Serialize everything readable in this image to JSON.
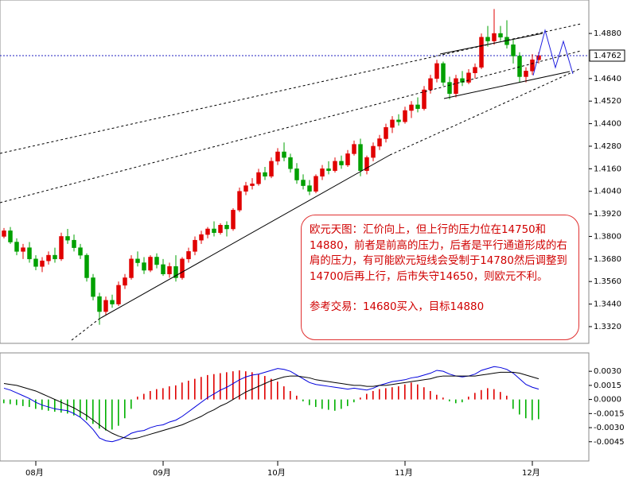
{
  "chart_data": [
    {
      "type": "candlestick",
      "up_color": "#e00000",
      "down_color": "#00a000",
      "ylim": [
        1.3231,
        1.5058
      ],
      "yticks": [
        {
          "value": 1.488,
          "label": "1.4880"
        },
        {
          "value": 1.464,
          "label": "1.4640"
        },
        {
          "value": 1.452,
          "label": "1.4520"
        },
        {
          "value": 1.44,
          "label": "1.4400"
        },
        {
          "value": 1.428,
          "label": "1.4280"
        },
        {
          "value": 1.416,
          "label": "1.4160"
        },
        {
          "value": 1.404,
          "label": "1.4040"
        },
        {
          "value": 1.392,
          "label": "1.3920"
        },
        {
          "value": 1.38,
          "label": "1.3800"
        },
        {
          "value": 1.368,
          "label": "1.3680"
        },
        {
          "value": 1.356,
          "label": "1.3560"
        },
        {
          "value": 1.344,
          "label": "1.3440"
        },
        {
          "value": 1.332,
          "label": "1.3320"
        }
      ],
      "current_price": {
        "value": 1.4762,
        "label": "1.4762"
      },
      "open": [
        1.38,
        1.383,
        1.377,
        1.372,
        1.374,
        1.368,
        1.364,
        1.367,
        1.37,
        1.368,
        1.38,
        1.378,
        1.374,
        1.37,
        1.358,
        1.348,
        1.34,
        1.346,
        1.344,
        1.354,
        1.358,
        1.368,
        1.366,
        1.362,
        1.369,
        1.365,
        1.36,
        1.364,
        1.358,
        1.368,
        1.372,
        1.378,
        1.381,
        1.384,
        1.382,
        1.386,
        1.384,
        1.394,
        1.404,
        1.407,
        1.408,
        1.414,
        1.412,
        1.42,
        1.425,
        1.422,
        1.416,
        1.41,
        1.407,
        1.404,
        1.412,
        1.416,
        1.415,
        1.42,
        1.418,
        1.424,
        1.429,
        1.415,
        1.422,
        1.428,
        1.432,
        1.438,
        1.442,
        1.441,
        1.447,
        1.45,
        1.448,
        1.458,
        1.464,
        1.472,
        1.462,
        1.456,
        1.464,
        1.462,
        1.467,
        1.47,
        1.486,
        1.484,
        1.488,
        1.486,
        1.482,
        1.476,
        1.465,
        1.468,
        1.474
      ],
      "high": [
        1.3845,
        1.385,
        1.379,
        1.376,
        1.377,
        1.37,
        1.369,
        1.372,
        1.374,
        1.382,
        1.384,
        1.381,
        1.376,
        1.371,
        1.36,
        1.35,
        1.348,
        1.349,
        1.356,
        1.36,
        1.37,
        1.372,
        1.369,
        1.37,
        1.371,
        1.368,
        1.366,
        1.37,
        1.369,
        1.374,
        1.38,
        1.383,
        1.385,
        1.388,
        1.387,
        1.388,
        1.395,
        1.406,
        1.409,
        1.411,
        1.416,
        1.417,
        1.422,
        1.427,
        1.43,
        1.424,
        1.419,
        1.413,
        1.41,
        1.413,
        1.418,
        1.42,
        1.422,
        1.423,
        1.426,
        1.431,
        1.432,
        1.423,
        1.43,
        1.434,
        1.44,
        1.444,
        1.445,
        1.449,
        1.452,
        1.454,
        1.46,
        1.466,
        1.474,
        1.473,
        1.465,
        1.466,
        1.468,
        1.469,
        1.472,
        1.488,
        1.492,
        1.501,
        1.492,
        1.495,
        1.485,
        1.478,
        1.47,
        1.477,
        1.478
      ],
      "low": [
        1.379,
        1.376,
        1.37,
        1.368,
        1.366,
        1.362,
        1.361,
        1.365,
        1.366,
        1.367,
        1.376,
        1.372,
        1.368,
        1.356,
        1.346,
        1.333,
        1.338,
        1.342,
        1.343,
        1.352,
        1.357,
        1.364,
        1.36,
        1.361,
        1.363,
        1.359,
        1.358,
        1.356,
        1.357,
        1.366,
        1.37,
        1.376,
        1.379,
        1.38,
        1.381,
        1.38,
        1.383,
        1.393,
        1.402,
        1.405,
        1.407,
        1.41,
        1.411,
        1.418,
        1.42,
        1.414,
        1.408,
        1.405,
        1.402,
        1.403,
        1.41,
        1.413,
        1.414,
        1.416,
        1.417,
        1.423,
        1.412,
        1.413,
        1.42,
        1.426,
        1.43,
        1.435,
        1.439,
        1.44,
        1.443,
        1.446,
        1.447,
        1.456,
        1.462,
        1.46,
        1.453,
        1.454,
        1.46,
        1.461,
        1.464,
        1.469,
        1.481,
        1.482,
        1.484,
        1.48,
        1.472,
        1.462,
        1.462,
        1.466,
        1.472
      ],
      "close": [
        1.383,
        1.377,
        1.372,
        1.374,
        1.368,
        1.364,
        1.367,
        1.37,
        1.368,
        1.38,
        1.378,
        1.374,
        1.37,
        1.358,
        1.348,
        1.34,
        1.346,
        1.344,
        1.354,
        1.358,
        1.368,
        1.366,
        1.362,
        1.369,
        1.365,
        1.36,
        1.364,
        1.358,
        1.368,
        1.372,
        1.378,
        1.381,
        1.384,
        1.382,
        1.386,
        1.384,
        1.394,
        1.404,
        1.407,
        1.408,
        1.414,
        1.412,
        1.42,
        1.425,
        1.422,
        1.416,
        1.41,
        1.407,
        1.404,
        1.412,
        1.416,
        1.415,
        1.42,
        1.418,
        1.424,
        1.429,
        1.415,
        1.422,
        1.428,
        1.432,
        1.438,
        1.442,
        1.441,
        1.447,
        1.45,
        1.448,
        1.458,
        1.464,
        1.472,
        1.462,
        1.456,
        1.464,
        1.462,
        1.467,
        1.47,
        1.486,
        1.484,
        1.488,
        1.486,
        1.482,
        1.476,
        1.465,
        1.468,
        1.474,
        1.4762
      ],
      "annotation": [
        "欧元天图：汇价向上，但上行的压力位在14750和14880，前者是前高的压力，后者是平行通道形成的右肩的压力，有可能欧元短线会受制于14780然后调整到14700后再上行，后市失守14650，则欧元不利。",
        "参考交易：14680买入，目标14880"
      ]
    },
    {
      "type": "macd",
      "categories": [
        null,
        null,
        null,
        null,
        null,
        "08月",
        null,
        null,
        null,
        null,
        null,
        null,
        null,
        null,
        null,
        null,
        null,
        null,
        null,
        null,
        null,
        null,
        null,
        null,
        null,
        "09月",
        null,
        null,
        null,
        null,
        null,
        null,
        null,
        null,
        null,
        null,
        null,
        null,
        null,
        null,
        null,
        null,
        null,
        "10月",
        null,
        null,
        null,
        null,
        null,
        null,
        null,
        null,
        null,
        null,
        null,
        null,
        null,
        null,
        null,
        null,
        null,
        null,
        null,
        "11月",
        null,
        null,
        null,
        null,
        null,
        null,
        null,
        null,
        null,
        null,
        null,
        null,
        null,
        null,
        null,
        null,
        null,
        null,
        null,
        "12月",
        null
      ],
      "ylim": [
        -0.00655,
        0.00496
      ],
      "yticks": [
        {
          "value": 0.003,
          "label": "0.0030"
        },
        {
          "value": 0.0015,
          "label": "0.0015"
        },
        {
          "value": 0,
          "label": "0.0000"
        },
        {
          "value": -0.0015,
          "label": "-0.0015"
        },
        {
          "value": -0.003,
          "label": "-0.0030"
        },
        {
          "value": -0.0045,
          "label": "-0.0045"
        }
      ],
      "histogram": {
        "up_color": "#e00000",
        "down_color": "#00b000",
        "values": [
          -0.0004,
          -0.0005,
          -0.0006,
          -0.0007,
          -0.0008,
          -0.001,
          -0.0011,
          -0.0012,
          -0.0013,
          -0.0014,
          -0.0015,
          -0.0017,
          -0.0019,
          -0.0022,
          -0.0026,
          -0.0031,
          -0.0033,
          -0.0032,
          -0.0028,
          -0.002,
          -0.001,
          0.0003,
          0.0006,
          0.0009,
          0.0011,
          0.0012,
          0.0014,
          0.0015,
          0.0018,
          0.002,
          0.0022,
          0.0024,
          0.0026,
          0.0027,
          0.0028,
          0.0029,
          0.003,
          0.0031,
          0.003,
          0.0029,
          0.0027,
          0.0025,
          0.0022,
          0.0019,
          0.0014,
          0.0009,
          0.0004,
          -0.0002,
          -0.0006,
          -0.0008,
          -0.001,
          -0.0011,
          -0.0012,
          -0.001,
          -0.0007,
          -0.0003,
          0.0002,
          0.0006,
          0.0009,
          0.0011,
          0.0012,
          0.0013,
          0.0014,
          0.0016,
          0.0018,
          0.0016,
          0.0013,
          0.0009,
          0.0005,
          0.0002,
          -0.0002,
          -0.0004,
          -0.0003,
          0.0003,
          0.0007,
          0.001,
          0.0012,
          0.0011,
          0.0008,
          0.0004,
          -0.001,
          -0.0016,
          -0.002,
          -0.0022,
          -0.0021
        ]
      },
      "series": [
        {
          "color": "#0000dd",
          "values": [
            0.0012,
            0.001,
            0.0007,
            0.0004,
            0.0001,
            -0.0003,
            -0.0006,
            -0.0008,
            -0.001,
            -0.0011,
            -0.0012,
            -0.0015,
            -0.0019,
            -0.0025,
            -0.0032,
            -0.0041,
            -0.0044,
            -0.0045,
            -0.0043,
            -0.004,
            -0.0036,
            -0.0034,
            -0.0033,
            -0.003,
            -0.0028,
            -0.0027,
            -0.0024,
            -0.0022,
            -0.0018,
            -0.0013,
            -0.0008,
            -0.0003,
            0.0002,
            0.0006,
            0.001,
            0.0013,
            0.0017,
            0.0021,
            0.0024,
            0.0026,
            0.0027,
            0.0029,
            0.0031,
            0.0033,
            0.0032,
            0.003,
            0.0026,
            0.0022,
            0.0018,
            0.0016,
            0.0015,
            0.0014,
            0.0013,
            0.0012,
            0.0011,
            0.0012,
            0.0011,
            0.001,
            0.0012,
            0.0015,
            0.0017,
            0.0019,
            0.002,
            0.0021,
            0.0023,
            0.0024,
            0.0026,
            0.0028,
            0.0031,
            0.003,
            0.0027,
            0.0025,
            0.0024,
            0.0025,
            0.0027,
            0.0031,
            0.0033,
            0.0035,
            0.0034,
            0.0032,
            0.0028,
            0.0022,
            0.0016,
            0.0013,
            0.0011
          ]
        },
        {
          "color": "#000000",
          "values": [
            0.0017,
            0.0016,
            0.0015,
            0.0013,
            0.0011,
            0.0009,
            0.0006,
            0.0003,
            0,
            -0.0003,
            -0.0006,
            -0.0009,
            -0.0013,
            -0.0017,
            -0.0022,
            -0.0027,
            -0.0032,
            -0.0036,
            -0.0039,
            -0.0041,
            -0.0042,
            -0.0041,
            -0.0039,
            -0.0037,
            -0.0035,
            -0.0033,
            -0.0031,
            -0.0029,
            -0.0027,
            -0.0024,
            -0.0021,
            -0.0018,
            -0.0014,
            -0.0011,
            -0.0007,
            -0.0004,
            0,
            0.0004,
            0.0008,
            0.0011,
            0.0014,
            0.0017,
            0.002,
            0.0022,
            0.0024,
            0.0025,
            0.0025,
            0.0024,
            0.0023,
            0.0021,
            0.002,
            0.0019,
            0.0018,
            0.0017,
            0.0016,
            0.0015,
            0.0015,
            0.0014,
            0.0014,
            0.0015,
            0.0015,
            0.0016,
            0.0017,
            0.0018,
            0.0019,
            0.002,
            0.0021,
            0.0022,
            0.0024,
            0.0025,
            0.0025,
            0.0025,
            0.0025,
            0.0025,
            0.0025,
            0.0026,
            0.0027,
            0.0028,
            0.0029,
            0.0029,
            0.0029,
            0.0028,
            0.0026,
            0.0024,
            0.0022
          ]
        }
      ]
    }
  ]
}
